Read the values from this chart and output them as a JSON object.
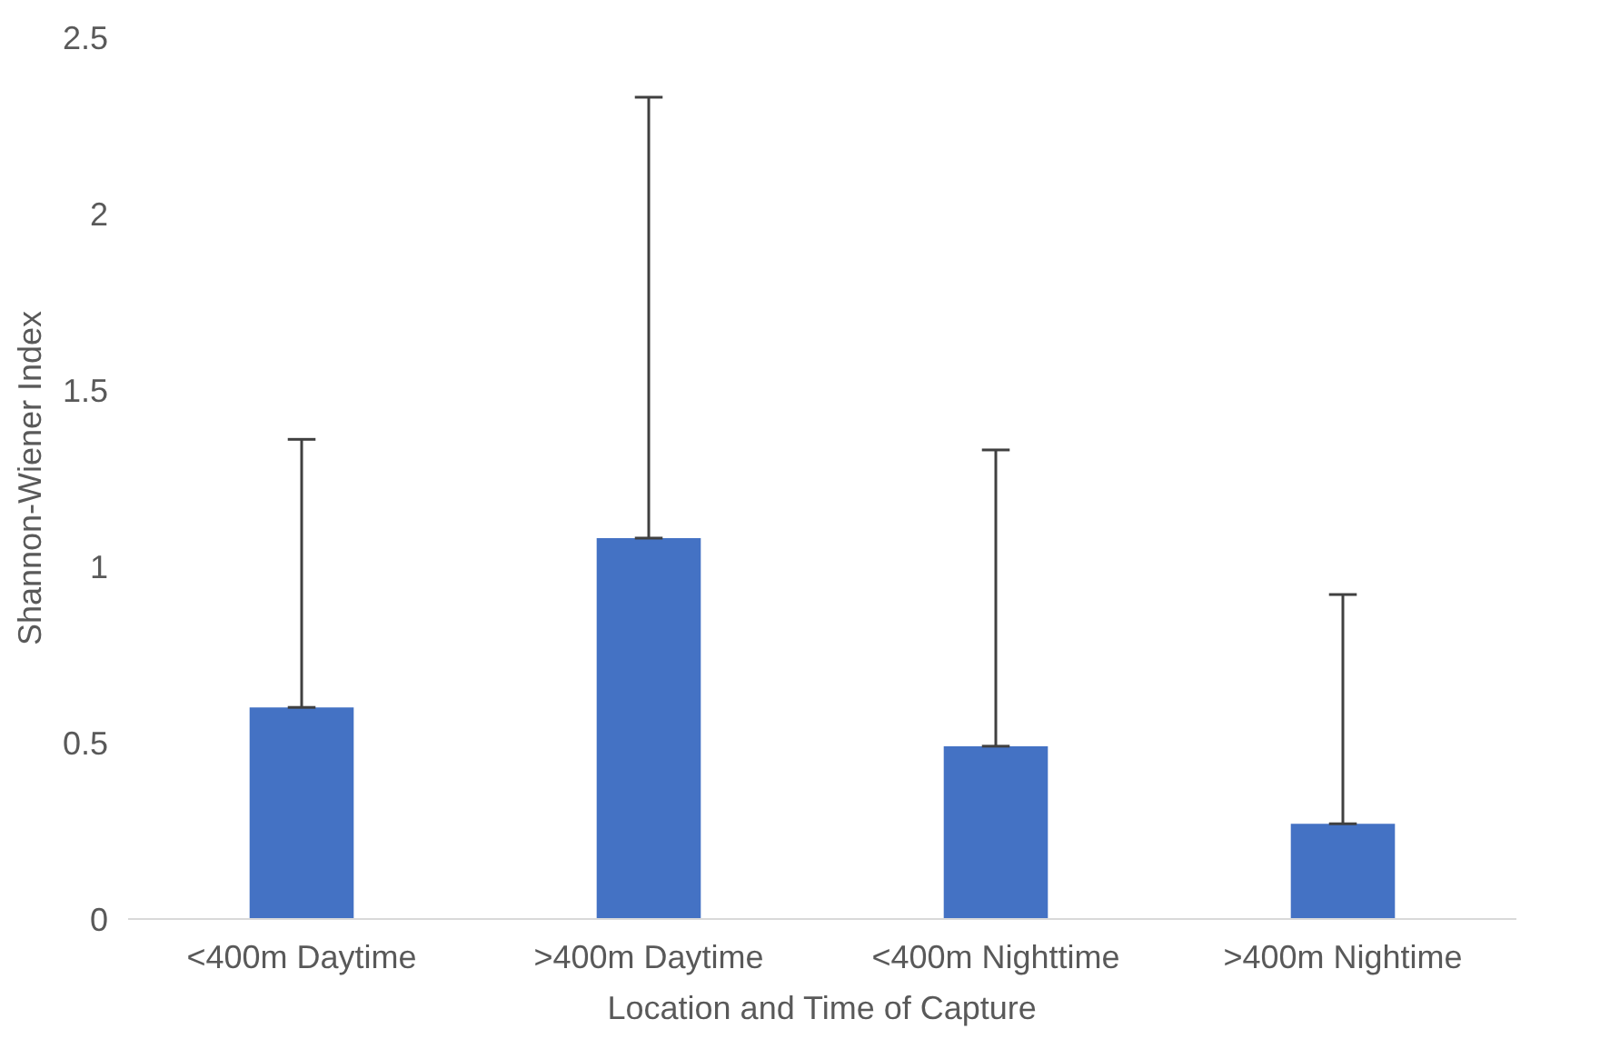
{
  "chart_data": {
    "type": "bar",
    "xlabel": "Location and Time of Capture",
    "ylabel": "Shannon-Wiener Index",
    "categories": [
      "<400m Daytime",
      ">400m Daytime",
      "<400m Nighttime",
      ">400m Nightime"
    ],
    "values": [
      0.6,
      1.08,
      0.49,
      0.27
    ],
    "errors": [
      [
        0.6,
        1.36
      ],
      [
        1.08,
        2.33
      ],
      [
        0.49,
        1.33
      ],
      [
        0.27,
        0.92
      ]
    ],
    "color": "#4472c4",
    "ylim": [
      0,
      2.5
    ],
    "yticks": [
      0,
      0.5,
      1,
      1.5,
      2,
      2.5
    ],
    "grid": false
  }
}
